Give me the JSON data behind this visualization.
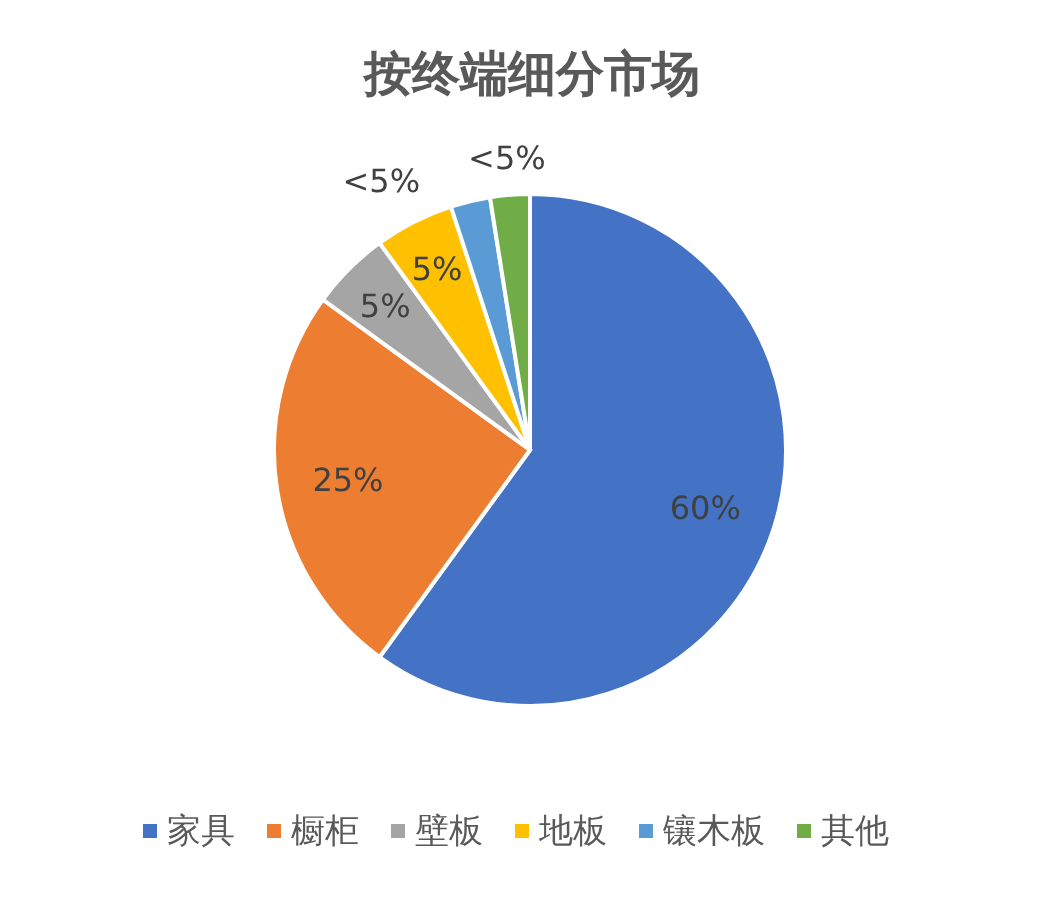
{
  "chart_data": {
    "type": "pie",
    "title": "按终端细分市场",
    "categories": [
      "家具",
      "橱柜",
      "壁板",
      "地板",
      "镶木板",
      "其他"
    ],
    "values": [
      60,
      25,
      5,
      5,
      2.5,
      2.5
    ],
    "value_labels": [
      "60%",
      "25%",
      "5%",
      "5%",
      "<5%",
      "<5%"
    ],
    "colors": [
      "#4472c4",
      "#ed7d31",
      "#a5a5a5",
      "#ffc000",
      "#5b9bd5",
      "#70ad47"
    ],
    "legend": "bottom"
  }
}
